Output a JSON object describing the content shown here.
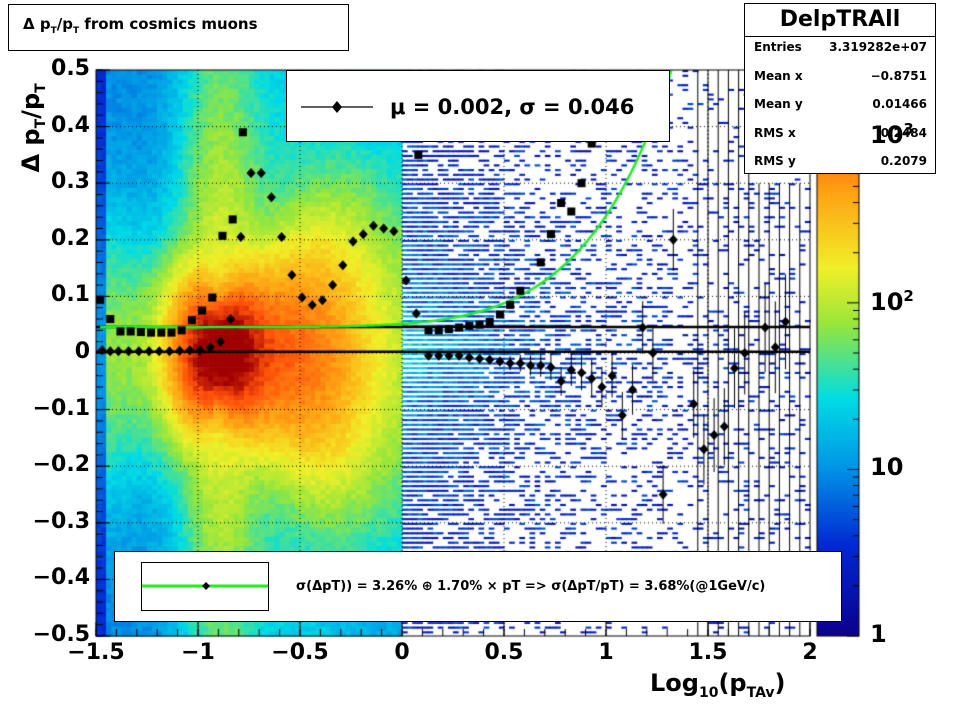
{
  "title_box": {
    "prefix": "Δ p",
    "sub1": "T",
    "slash": "/p",
    "sub2": "T",
    "suffix": " from cosmics muons"
  },
  "stats": {
    "name": "DelpTRAll",
    "rows": [
      {
        "label": "Entries",
        "value": "3.319282e+07"
      },
      {
        "label": "Mean x",
        "value": "−0.8751"
      },
      {
        "label": "Mean y",
        "value": "0.01466"
      },
      {
        "label": "RMS x",
        "value": "0.2484"
      },
      {
        "label": "RMS y",
        "value": "0.2079"
      }
    ]
  },
  "legend_top": {
    "text": "μ =  0.002, σ =   0.046"
  },
  "legend_bottom": {
    "text": "σ(ΔpT)) =  3.26% ⊕  1.70% × pT => σ(ΔpT/pT) =  3.68%(@1GeV/c)"
  },
  "axes": {
    "x_label_main": "Log",
    "x_label_sub": "10",
    "x_label_open": "(p",
    "x_label_sub2": "TAv",
    "x_label_close": ")",
    "y_label_main": "Δ p",
    "y_label_sub": "T",
    "y_label_slash": "/p",
    "y_label_sub2": "T"
  },
  "colorbar": {
    "labels": [
      "1",
      "10",
      "10",
      "10"
    ],
    "sup": [
      "",
      "",
      "2",
      "3"
    ],
    "values": [
      1,
      10,
      100,
      1000
    ]
  },
  "chart_data": {
    "type": "heatmap",
    "xlim": [
      -1.5,
      2
    ],
    "ylim": [
      -0.5,
      0.5
    ],
    "x_ticks": [
      "−1.5",
      "−1",
      "−0.5",
      "0",
      "0.5",
      "1",
      "1.5",
      "2"
    ],
    "x_tick_values": [
      -1.5,
      -1,
      -0.5,
      0,
      0.5,
      1,
      1.5,
      2
    ],
    "y_ticks": [
      "0.5",
      "0.4",
      "0.3",
      "0.2",
      "0.1",
      "0",
      "−0.1",
      "−0.2",
      "−0.3",
      "−0.4",
      "−0.5"
    ],
    "y_tick_values": [
      0.5,
      0.4,
      0.3,
      0.2,
      0.1,
      0,
      -0.1,
      -0.2,
      -0.3,
      -0.4,
      -0.5
    ],
    "grid": true,
    "z_scale": "log",
    "zlim": [
      1,
      2500
    ],
    "mean_series": [
      [
        -1.47,
        0.005
      ],
      [
        -1.43,
        0.003
      ],
      [
        -1.39,
        0.003
      ],
      [
        -1.34,
        0.003
      ],
      [
        -1.29,
        0.003
      ],
      [
        -1.24,
        0.003
      ],
      [
        -1.19,
        0.003
      ],
      [
        -1.14,
        0.003
      ],
      [
        -1.09,
        0.004
      ],
      [
        -1.04,
        0.005
      ],
      [
        -0.99,
        0.005
      ],
      [
        -0.94,
        0.01
      ],
      [
        -0.89,
        0.02
      ],
      [
        -0.84,
        0.06
      ],
      [
        -0.79,
        0.205
      ],
      [
        -0.74,
        0.318
      ],
      [
        -0.69,
        0.318
      ],
      [
        -0.64,
        0.275
      ],
      [
        -0.59,
        0.205
      ],
      [
        -0.54,
        0.138
      ],
      [
        -0.49,
        0.098
      ],
      [
        -0.44,
        0.085
      ],
      [
        -0.39,
        0.093
      ],
      [
        -0.34,
        0.12
      ],
      [
        -0.29,
        0.155
      ],
      [
        -0.24,
        0.197
      ],
      [
        -0.19,
        0.21
      ],
      [
        -0.14,
        0.225
      ],
      [
        -0.09,
        0.22
      ],
      [
        -0.04,
        0.215
      ],
      [
        0.02,
        0.128
      ],
      [
        0.07,
        0.07
      ],
      [
        0.13,
        -0.005
      ],
      [
        0.18,
        -0.005
      ],
      [
        0.23,
        -0.005
      ],
      [
        0.28,
        -0.005
      ],
      [
        0.33,
        -0.008
      ],
      [
        0.38,
        -0.01
      ],
      [
        0.43,
        -0.012
      ],
      [
        0.48,
        -0.015
      ],
      [
        0.53,
        -0.018
      ],
      [
        0.58,
        -0.018
      ],
      [
        0.63,
        -0.022
      ],
      [
        0.68,
        -0.022
      ],
      [
        0.73,
        -0.025
      ],
      [
        0.78,
        -0.05
      ],
      [
        0.83,
        -0.03
      ],
      [
        0.88,
        -0.035
      ],
      [
        0.93,
        -0.045
      ],
      [
        0.98,
        -0.06
      ],
      [
        1.03,
        -0.04
      ],
      [
        1.08,
        -0.11
      ],
      [
        1.13,
        -0.065
      ],
      [
        1.18,
        0.045
      ],
      [
        1.23,
        0
      ],
      [
        1.28,
        -0.25
      ],
      [
        1.33,
        0.2
      ],
      [
        1.43,
        -0.09
      ],
      [
        1.48,
        -0.17
      ],
      [
        1.53,
        -0.145
      ],
      [
        1.58,
        -0.13
      ],
      [
        1.63,
        -0.027
      ],
      [
        1.68,
        0
      ],
      [
        1.78,
        0.045
      ],
      [
        1.83,
        0.01
      ],
      [
        1.88,
        0.055
      ]
    ],
    "sigma_series": [
      [
        -1.48,
        0.094
      ],
      [
        -1.43,
        0.06
      ],
      [
        -1.38,
        0.038
      ],
      [
        -1.33,
        0.038
      ],
      [
        -1.28,
        0.037
      ],
      [
        -1.23,
        0.036
      ],
      [
        -1.18,
        0.036
      ],
      [
        -1.13,
        0.036
      ],
      [
        -1.08,
        0.04
      ],
      [
        -1.03,
        0.058
      ],
      [
        -0.98,
        0.075
      ],
      [
        -0.93,
        0.098
      ],
      [
        -0.88,
        0.207
      ],
      [
        -0.83,
        0.236
      ],
      [
        -0.78,
        0.39
      ],
      [
        0.08,
        0.35
      ],
      [
        0.13,
        0.04
      ],
      [
        0.18,
        0.04
      ],
      [
        0.23,
        0.042
      ],
      [
        0.28,
        0.045
      ],
      [
        0.33,
        0.048
      ],
      [
        0.38,
        0.05
      ],
      [
        0.43,
        0.055
      ],
      [
        0.48,
        0.068
      ],
      [
        0.53,
        0.085
      ],
      [
        0.58,
        0.11
      ],
      [
        0.68,
        0.16
      ],
      [
        0.73,
        0.21
      ],
      [
        0.78,
        0.265
      ],
      [
        0.83,
        0.25
      ],
      [
        0.88,
        0.3
      ],
      [
        0.93,
        0.37
      ]
    ],
    "fit_lines": [
      {
        "type": "flat",
        "y": 0.002
      },
      {
        "type": "flat",
        "y": 0.046
      },
      {
        "type": "resolution_curve",
        "a": 0.0326,
        "b": 0.017
      }
    ]
  }
}
